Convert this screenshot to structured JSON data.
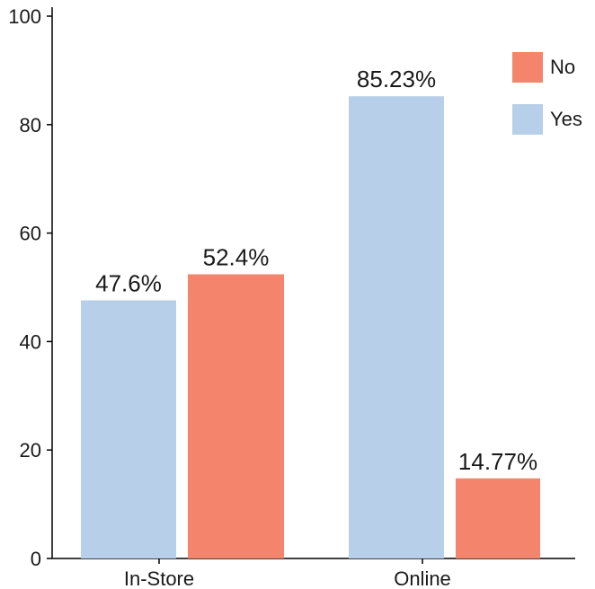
{
  "chart_data": {
    "type": "bar",
    "title": "",
    "xlabel": "",
    "ylabel": "",
    "categories": [
      "In-Store",
      "Online"
    ],
    "series": [
      {
        "name": "Yes",
        "color": "#b7cfe9",
        "values": [
          47.6,
          85.23
        ],
        "labels": [
          "47.6%",
          "85.23%"
        ]
      },
      {
        "name": "No",
        "color": "#f4846b",
        "values": [
          52.4,
          14.77
        ],
        "labels": [
          "52.4%",
          "14.77%"
        ]
      }
    ],
    "ylim": [
      0,
      100
    ],
    "yticks": [
      0,
      20,
      40,
      60,
      80,
      100
    ],
    "ytick_labels": [
      "0",
      "20",
      "40",
      "60",
      "80",
      "100"
    ],
    "legend": {
      "position": "top-right",
      "order": [
        "No",
        "Yes"
      ]
    },
    "grid": false
  }
}
